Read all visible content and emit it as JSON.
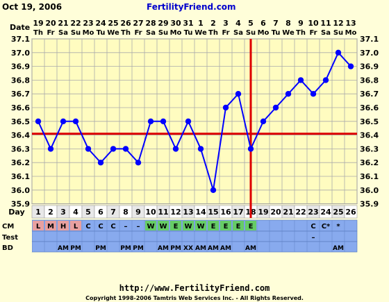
{
  "header": {
    "date": "Oct 19, 2006",
    "site": "FertilityFriend.com"
  },
  "footer": {
    "url": "http://www.FertilityFriend.com",
    "copyright": "Copyright 1998-2006 Tamtris Web Services Inc. - All Rights Reserved."
  },
  "chart_data": {
    "type": "line",
    "row_label": "Date",
    "dates": [
      "19",
      "20",
      "21",
      "22",
      "23",
      "24",
      "25",
      "26",
      "27",
      "28",
      "29",
      "30",
      "31",
      "1",
      "2",
      "3",
      "4",
      "5",
      "6",
      "7",
      "8",
      "9",
      "10",
      "11",
      "12",
      "13"
    ],
    "weekdays": [
      "Th",
      "Fr",
      "Sa",
      "Su",
      "Mo",
      "Tu",
      "We",
      "Th",
      "Fr",
      "Sa",
      "Su",
      "Mo",
      "Tu",
      "We",
      "Th",
      "Fr",
      "Sa",
      "Su",
      "Mo",
      "Tu",
      "We",
      "Th",
      "Fr",
      "Sa",
      "Su",
      "Mo"
    ],
    "y_ticks": [
      "37.1",
      "37.0",
      "36.9",
      "36.8",
      "36.7",
      "36.6",
      "36.5",
      "36.4",
      "36.3",
      "36.2",
      "36.1",
      "36.0",
      "35.9"
    ],
    "ylim": [
      35.9,
      37.1
    ],
    "temperatures": [
      36.5,
      36.3,
      36.5,
      36.5,
      36.3,
      36.2,
      36.3,
      36.3,
      36.2,
      36.5,
      36.5,
      36.3,
      36.5,
      36.3,
      36.0,
      36.6,
      36.7,
      36.3,
      36.5,
      36.6,
      36.7,
      36.8,
      36.7,
      36.8,
      37.0,
      36.9
    ],
    "coverline": 36.41,
    "ovulation_day": 18,
    "series_color": "#0000ff",
    "coverline_color": "#dd0000",
    "grid": true,
    "rows": {
      "day": {
        "label": "Day",
        "values": [
          "1",
          "2",
          "3",
          "4",
          "5",
          "6",
          "7",
          "8",
          "9",
          "10",
          "11",
          "12",
          "13",
          "14",
          "15",
          "16",
          "17",
          "18",
          "19",
          "20",
          "21",
          "22",
          "23",
          "24",
          "25",
          "26"
        ]
      },
      "cm": {
        "label": "CM",
        "values": [
          "L",
          "M",
          "H",
          "L",
          "C",
          "C",
          "C",
          "–",
          "–",
          "W",
          "W",
          "E",
          "W",
          "W",
          "E",
          "E",
          "E",
          "E",
          "",
          "",
          "",
          "",
          "C",
          "C*",
          "*",
          ""
        ]
      },
      "test": {
        "label": "Test",
        "values": [
          "",
          "",
          "",
          "",
          "",
          "",
          "",
          "",
          "",
          "",
          "",
          "",
          "",
          "",
          "",
          "",
          "",
          "",
          "",
          "",
          "",
          "",
          "–",
          "",
          "",
          ""
        ]
      },
      "bd": {
        "label": "BD",
        "values": [
          "",
          "",
          "AM",
          "PM",
          "",
          "PM",
          "",
          "PM",
          "PM",
          "",
          "AM",
          "PM",
          "XX",
          "AM",
          "AM",
          "AM",
          "",
          "AM",
          "",
          "",
          "",
          "",
          "",
          "",
          "AM",
          ""
        ]
      }
    }
  }
}
